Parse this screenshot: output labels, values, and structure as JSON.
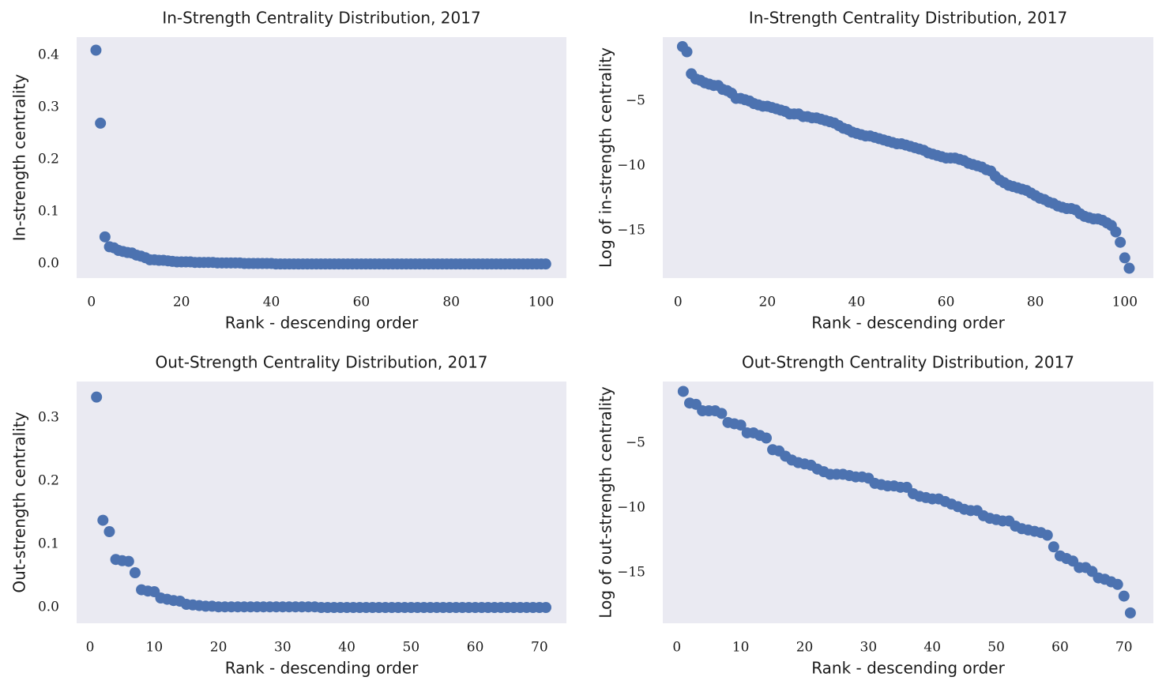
{
  "chart_data": [
    {
      "type": "scatter",
      "title": "In-Strength Centrality Distribution, 2017",
      "xlabel": "Rank - descending order",
      "ylabel": "In-strength centrality",
      "color": "#4c72b0",
      "x": [
        1,
        2,
        3,
        4,
        5,
        6,
        7,
        8,
        9,
        10,
        11,
        12,
        13,
        14,
        15,
        16,
        17,
        18,
        19,
        20,
        21,
        22,
        23,
        24,
        25,
        26,
        27,
        28,
        29,
        30,
        31,
        32,
        33,
        34,
        35,
        36,
        37,
        38,
        39,
        40,
        41,
        42,
        43,
        44,
        45,
        46,
        47,
        48,
        49,
        50,
        51,
        52,
        53,
        54,
        55,
        56,
        57,
        58,
        59,
        60,
        61,
        62,
        63,
        64,
        65,
        66,
        67,
        68,
        69,
        70,
        71,
        72,
        73,
        74,
        75,
        76,
        77,
        78,
        79,
        80,
        81,
        82,
        83,
        84,
        85,
        86,
        87,
        88,
        89,
        90,
        91,
        92,
        93,
        94,
        95,
        96,
        97,
        98,
        99,
        100,
        101
      ],
      "values": [
        0.41,
        0.27,
        0.052,
        0.033,
        0.031,
        0.026,
        0.024,
        0.022,
        0.021,
        0.017,
        0.015,
        0.012,
        0.008,
        0.008,
        0.007,
        0.007,
        0.006,
        0.005,
        0.004,
        0.004,
        0.004,
        0.004,
        0.003,
        0.003,
        0.003,
        0.003,
        0.003,
        0.002,
        0.002,
        0.002,
        0.002,
        0.002,
        0.002,
        0.001,
        0.001,
        0.001,
        0.001,
        0.001,
        0.001,
        0.001,
        0,
        0,
        0,
        0,
        0,
        0,
        0,
        0,
        0,
        0,
        0,
        0,
        0,
        0,
        0,
        0,
        0,
        0,
        0,
        0,
        0,
        0,
        0,
        0,
        0,
        0,
        0,
        0,
        0,
        0,
        0,
        0,
        0,
        0,
        0,
        0,
        0,
        0,
        0,
        0,
        0,
        0,
        0,
        0,
        0,
        0,
        0,
        0,
        0,
        0,
        0,
        0,
        0,
        0,
        0,
        0,
        0,
        0,
        0,
        0,
        0
      ],
      "xlim": [
        -3.3,
        105.6
      ],
      "ylim": [
        -0.027,
        0.435
      ],
      "xticks": [
        0,
        20,
        40,
        60,
        80,
        100
      ],
      "yticks": [
        {
          "value": 0,
          "label": "0.0"
        },
        0.1,
        0.2,
        0.3,
        0.4
      ]
    },
    {
      "type": "scatter",
      "title": "In-Strength Centrality Distribution, 2017",
      "xlabel": "Rank - descending order",
      "ylabel": "Log of in-strength centrality",
      "color": "#4c72b0",
      "x": [
        1,
        2,
        3,
        4,
        5,
        6,
        7,
        8,
        9,
        10,
        11,
        12,
        13,
        14,
        15,
        16,
        17,
        18,
        19,
        20,
        21,
        22,
        23,
        24,
        25,
        26,
        27,
        28,
        29,
        30,
        31,
        32,
        33,
        34,
        35,
        36,
        37,
        38,
        39,
        40,
        41,
        42,
        43,
        44,
        45,
        46,
        47,
        48,
        49,
        50,
        51,
        52,
        53,
        54,
        55,
        56,
        57,
        58,
        59,
        60,
        61,
        62,
        63,
        64,
        65,
        66,
        67,
        68,
        69,
        70,
        71,
        72,
        73,
        74,
        75,
        76,
        77,
        78,
        79,
        80,
        81,
        82,
        83,
        84,
        85,
        86,
        87,
        88,
        89,
        90,
        91,
        92,
        93,
        94,
        95,
        96,
        97,
        98,
        99,
        100,
        101
      ],
      "values": [
        -0.8,
        -1.2,
        -2.9,
        -3.3,
        -3.4,
        -3.6,
        -3.7,
        -3.8,
        -3.8,
        -4.1,
        -4.2,
        -4.4,
        -4.8,
        -4.8,
        -4.9,
        -5.0,
        -5.2,
        -5.3,
        -5.4,
        -5.4,
        -5.5,
        -5.6,
        -5.7,
        -5.8,
        -6.0,
        -6.0,
        -6.0,
        -6.2,
        -6.2,
        -6.3,
        -6.3,
        -6.4,
        -6.5,
        -6.6,
        -6.7,
        -6.9,
        -7.1,
        -7.2,
        -7.4,
        -7.5,
        -7.6,
        -7.7,
        -7.7,
        -7.8,
        -7.9,
        -8.0,
        -8.1,
        -8.2,
        -8.3,
        -8.3,
        -8.4,
        -8.5,
        -8.6,
        -8.7,
        -8.8,
        -9.0,
        -9.1,
        -9.2,
        -9.3,
        -9.4,
        -9.4,
        -9.4,
        -9.5,
        -9.6,
        -9.8,
        -9.9,
        -10.0,
        -10.1,
        -10.3,
        -10.4,
        -10.8,
        -11.1,
        -11.3,
        -11.5,
        -11.6,
        -11.7,
        -11.8,
        -11.9,
        -12.1,
        -12.3,
        -12.5,
        -12.6,
        -12.8,
        -12.9,
        -13.1,
        -13.2,
        -13.3,
        -13.3,
        -13.4,
        -13.7,
        -13.9,
        -14.0,
        -14.1,
        -14.1,
        -14.2,
        -14.4,
        -14.6,
        -15.1,
        -15.9,
        -17.1,
        -17.9
      ],
      "xlim": [
        -3.4,
        106.4
      ],
      "ylim": [
        -18.66,
        -0.07
      ],
      "xticks": [
        0,
        20,
        40,
        60,
        80,
        100
      ],
      "yticks": [
        {
          "value": -15,
          "label": "−15"
        },
        {
          "value": -10,
          "label": "−10"
        },
        {
          "value": -5,
          "label": "−5"
        }
      ]
    },
    {
      "type": "scatter",
      "title": "Out-Strength Centrality Distribution, 2017",
      "xlabel": "Rank - descending order",
      "ylabel": "Out-strength centrality",
      "color": "#4c72b0",
      "x": [
        1,
        2,
        3,
        4,
        5,
        6,
        7,
        8,
        9,
        10,
        11,
        12,
        13,
        14,
        15,
        16,
        17,
        18,
        19,
        20,
        21,
        22,
        23,
        24,
        25,
        26,
        27,
        28,
        29,
        30,
        31,
        32,
        33,
        34,
        35,
        36,
        37,
        38,
        39,
        40,
        41,
        42,
        43,
        44,
        45,
        46,
        47,
        48,
        49,
        50,
        51,
        52,
        53,
        54,
        55,
        56,
        57,
        58,
        59,
        60,
        61,
        62,
        63,
        64,
        65,
        66,
        67,
        68,
        69,
        70,
        71
      ],
      "values": [
        0.333,
        0.138,
        0.12,
        0.076,
        0.074,
        0.073,
        0.055,
        0.028,
        0.026,
        0.025,
        0.015,
        0.013,
        0.011,
        0.01,
        0.005,
        0.004,
        0.003,
        0.002,
        0.002,
        0.001,
        0.001,
        0.001,
        0.001,
        0.001,
        0.001,
        0.001,
        0.001,
        0.001,
        0.001,
        0.001,
        0.001,
        0.001,
        0.001,
        0.001,
        0.001,
        0,
        0,
        0,
        0,
        0,
        0,
        0,
        0,
        0,
        0,
        0,
        0,
        0,
        0,
        0,
        0,
        0,
        0,
        0,
        0,
        0,
        0,
        0,
        0,
        0,
        0,
        0,
        0,
        0,
        0,
        0,
        0,
        0,
        0,
        0,
        0
      ],
      "xlim": [
        -2.1,
        74.2
      ],
      "ylim": [
        -0.025,
        0.3575
      ],
      "xticks": [
        0,
        10,
        20,
        30,
        40,
        50,
        60,
        70
      ],
      "yticks": [
        {
          "value": 0,
          "label": "0.0"
        },
        0.1,
        0.2,
        0.3
      ]
    },
    {
      "type": "scatter",
      "title": "Out-Strength Centrality Distribution, 2017",
      "xlabel": "Rank - descending order",
      "ylabel": "Log of out-strength centrality",
      "color": "#4c72b0",
      "x": [
        1,
        2,
        3,
        4,
        5,
        6,
        7,
        8,
        9,
        10,
        11,
        12,
        13,
        14,
        15,
        16,
        17,
        18,
        19,
        20,
        21,
        22,
        23,
        24,
        25,
        26,
        27,
        28,
        29,
        30,
        31,
        32,
        33,
        34,
        35,
        36,
        37,
        38,
        39,
        40,
        41,
        42,
        43,
        44,
        45,
        46,
        47,
        48,
        49,
        50,
        51,
        52,
        53,
        54,
        55,
        56,
        57,
        58,
        59,
        60,
        61,
        62,
        63,
        64,
        65,
        66,
        67,
        68,
        69,
        70,
        71
      ],
      "values": [
        -1.0,
        -1.9,
        -2.0,
        -2.5,
        -2.5,
        -2.5,
        -2.7,
        -3.4,
        -3.5,
        -3.6,
        -4.2,
        -4.2,
        -4.4,
        -4.6,
        -5.5,
        -5.6,
        -6.0,
        -6.3,
        -6.5,
        -6.6,
        -6.7,
        -7.0,
        -7.2,
        -7.4,
        -7.4,
        -7.4,
        -7.5,
        -7.6,
        -7.6,
        -7.7,
        -8.1,
        -8.2,
        -8.3,
        -8.3,
        -8.4,
        -8.4,
        -8.9,
        -9.1,
        -9.2,
        -9.3,
        -9.3,
        -9.5,
        -9.7,
        -9.9,
        -10.1,
        -10.2,
        -10.2,
        -10.6,
        -10.8,
        -10.9,
        -11.0,
        -11.0,
        -11.4,
        -11.6,
        -11.7,
        -11.8,
        -11.9,
        -12.1,
        -13.0,
        -13.7,
        -13.9,
        -14.1,
        -14.6,
        -14.6,
        -14.9,
        -15.4,
        -15.5,
        -15.7,
        -15.9,
        -16.8,
        -18.1
      ],
      "xlim": [
        -2.2,
        74.6
      ],
      "ylim": [
        -18.9,
        -0.24
      ],
      "xticks": [
        0,
        10,
        20,
        30,
        40,
        50,
        60,
        70
      ],
      "yticks": [
        {
          "value": -15,
          "label": "−15"
        },
        {
          "value": -10,
          "label": "−10"
        },
        {
          "value": -5,
          "label": "−5"
        }
      ]
    }
  ]
}
